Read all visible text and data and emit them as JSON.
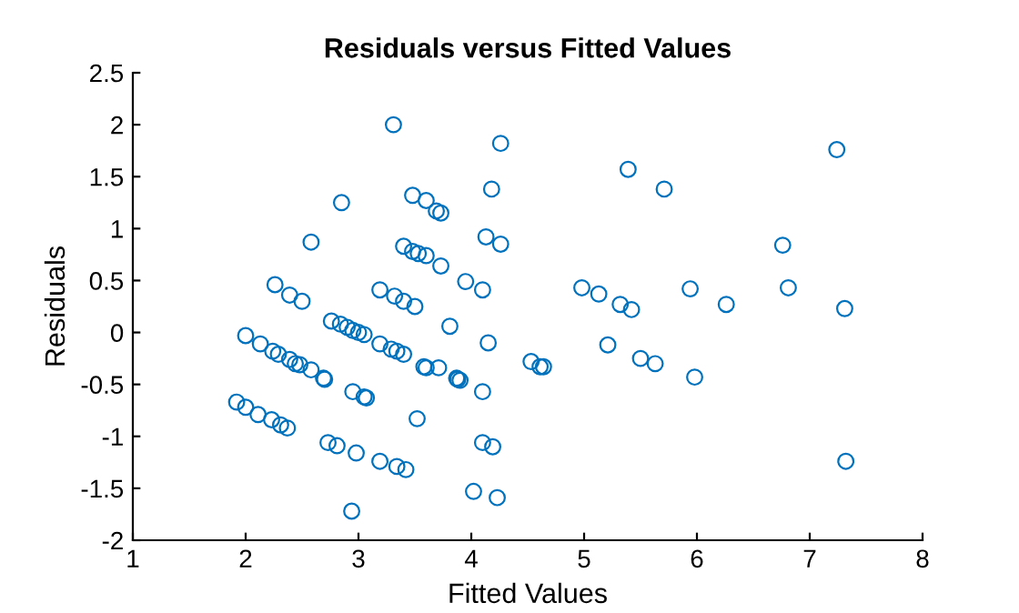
{
  "chart_data": {
    "type": "scatter",
    "title": "Residuals versus Fitted Values",
    "xlabel": "Fitted Values",
    "ylabel": "Residuals",
    "x": [
      1.92,
      2.0,
      2.11,
      2.23,
      2.31,
      2.37,
      2.0,
      2.13,
      2.24,
      2.29,
      2.39,
      2.44,
      2.48,
      2.58,
      2.69,
      2.7,
      2.26,
      2.39,
      2.5,
      2.58,
      2.85,
      2.76,
      2.84,
      2.9,
      2.95,
      3.0,
      3.05,
      2.95,
      3.05,
      3.07,
      2.73,
      2.81,
      2.98,
      2.94,
      3.19,
      3.29,
      3.34,
      3.4,
      3.19,
      3.34,
      3.42,
      3.19,
      3.32,
      3.4,
      3.5,
      3.31,
      3.4,
      3.48,
      3.53,
      3.6,
      3.73,
      3.48,
      3.6,
      3.69,
      3.73,
      3.52,
      3.58,
      3.6,
      3.81,
      3.95,
      4.1,
      3.71,
      3.87,
      3.88,
      3.9,
      4.15,
      4.1,
      4.1,
      4.19,
      4.02,
      4.23,
      4.13,
      4.26,
      4.18,
      4.26,
      4.53,
      4.61,
      4.64,
      4.98,
      5.13,
      5.32,
      5.42,
      5.21,
      5.5,
      5.63,
      5.39,
      5.71,
      5.94,
      5.98,
      6.26,
      6.76,
      6.81,
      7.24,
      7.31,
      7.32
    ],
    "values": [
      -0.67,
      -0.72,
      -0.79,
      -0.84,
      -0.89,
      -0.92,
      -0.03,
      -0.11,
      -0.18,
      -0.21,
      -0.26,
      -0.3,
      -0.31,
      -0.36,
      -0.44,
      -0.45,
      0.46,
      0.36,
      0.3,
      0.87,
      1.25,
      0.11,
      0.08,
      0.05,
      0.02,
      0.0,
      -0.02,
      -0.57,
      -0.62,
      -0.63,
      -1.06,
      -1.09,
      -1.16,
      -1.72,
      -0.11,
      -0.16,
      -0.18,
      -0.21,
      -1.24,
      -1.29,
      -1.32,
      0.41,
      0.35,
      0.3,
      0.25,
      2.0,
      0.83,
      0.78,
      0.76,
      0.74,
      0.64,
      1.32,
      1.27,
      1.17,
      1.15,
      -0.83,
      -0.33,
      -0.34,
      0.06,
      0.49,
      0.41,
      -0.34,
      -0.44,
      -0.45,
      -0.46,
      -0.1,
      -0.57,
      -1.06,
      -1.1,
      -1.53,
      -1.59,
      0.92,
      0.85,
      1.38,
      1.82,
      -0.28,
      -0.33,
      -0.33,
      0.43,
      0.37,
      0.27,
      0.22,
      -0.12,
      -0.25,
      -0.3,
      1.57,
      1.38,
      0.42,
      -0.43,
      0.27,
      0.84,
      0.43,
      1.76,
      0.23,
      -1.24
    ],
    "color": "#0072bd",
    "marker": "circle",
    "grid": false,
    "xlim": [
      1,
      8
    ],
    "xticks": [
      1,
      2,
      3,
      4,
      5,
      6,
      7,
      8
    ],
    "ylim": [
      -2,
      2.5
    ],
    "yticks": [
      {
        "value": -2,
        "label": "-2"
      },
      {
        "value": -1.5,
        "label": "-1.5"
      },
      {
        "value": -1,
        "label": "-1"
      },
      {
        "value": -0.5,
        "label": "-0.5"
      },
      0,
      0.5,
      1,
      1.5,
      2,
      2.5
    ]
  }
}
